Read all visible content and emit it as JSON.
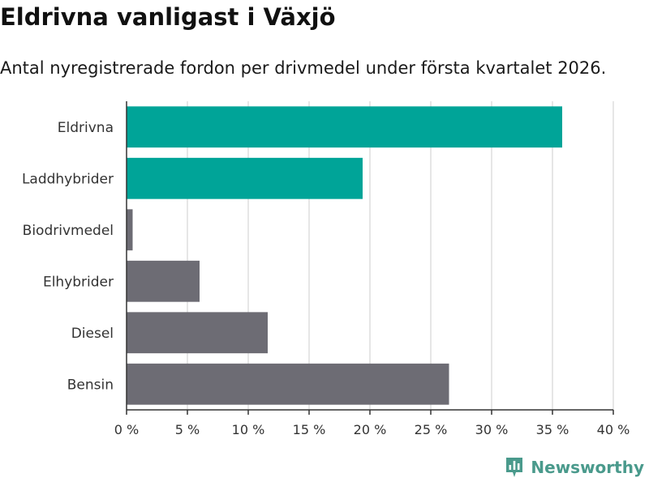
{
  "header": {
    "title": "Eldrivna vanligast i Växjö",
    "subtitle": "Antal nyregistrerade fordon per drivmedel under första kvartalet 2026."
  },
  "branding": {
    "name": "Newsworthy",
    "color": "#4a9a8c",
    "icon": "bar-chart-logo-icon"
  },
  "chart_data": {
    "type": "bar",
    "orientation": "horizontal",
    "title": "Eldrivna vanligast i Växjö",
    "subtitle": "Antal nyregistrerade fordon per drivmedel under första kvartalet 2026.",
    "categories": [
      "Eldrivna",
      "Laddhybrider",
      "Biodrivmedel",
      "Elhybrider",
      "Diesel",
      "Bensin"
    ],
    "values": [
      35.8,
      19.4,
      0.5,
      6.0,
      11.6,
      26.5
    ],
    "highlight": [
      true,
      true,
      false,
      false,
      false,
      false
    ],
    "colors": {
      "highlight": "#00a498",
      "default": "#6d6c74",
      "grid": "#dddddd",
      "axis": "#333333"
    },
    "xlim": [
      0,
      40
    ],
    "xticks": [
      0,
      5,
      10,
      15,
      20,
      25,
      30,
      35,
      40
    ],
    "xtick_labels": [
      "0 %",
      "5 %",
      "10 %",
      "15 %",
      "20 %",
      "25 %",
      "30 %",
      "35 %",
      "40 %"
    ],
    "xlabel": "",
    "ylabel": "",
    "grid": true
  }
}
